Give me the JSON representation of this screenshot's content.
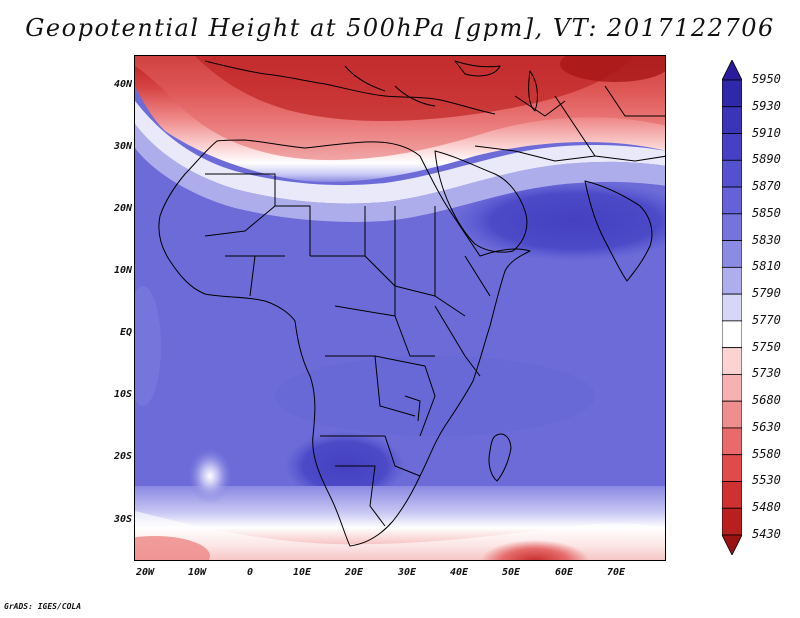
{
  "title": "Geopotential Height at 500hPa [gpm], VT: 2017122706",
  "credit": "GrADS: IGES/COLA",
  "axes": {
    "lat_labels": [
      "40N",
      "30N",
      "20N",
      "10N",
      "EQ",
      "10S",
      "20S",
      "30S"
    ],
    "lon_labels": [
      "20W",
      "10W",
      "0",
      "10E",
      "20E",
      "30E",
      "40E",
      "50E",
      "60E",
      "70E"
    ]
  },
  "colorbar": {
    "levels": [
      5950,
      5930,
      5910,
      5890,
      5870,
      5850,
      5830,
      5810,
      5790,
      5770,
      5750,
      5730,
      5680,
      5630,
      5580,
      5530,
      5480,
      5430
    ],
    "colors": [
      "#2a1b9c",
      "#2f28a8",
      "#3a34b8",
      "#4540c4",
      "#5451cf",
      "#6462d6",
      "#7574dc",
      "#8c8be4",
      "#aeaded",
      "#d6d6f6",
      "#ffffff",
      "#fbd3d3",
      "#f6b1b1",
      "#ef8e8e",
      "#e86a6a",
      "#df4a4a",
      "#cf3030",
      "#b82020",
      "#9a1212"
    ]
  },
  "map_colors": {
    "blue_base": "#6c6bd8",
    "blue_dark": "#4b47c6",
    "blue_light": "#8e8de6",
    "white": "#ffffff",
    "red_light": "#f3a7a7",
    "red_mid": "#e66a6a",
    "red_dark": "#c42828"
  }
}
